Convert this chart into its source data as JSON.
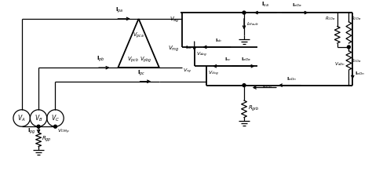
{
  "bg_color": "#ffffff",
  "line_color": "#000000",
  "lw": 1.3,
  "tlw": 0.9,
  "fig_width": 4.74,
  "fig_height": 2.42,
  "dpi": 100
}
